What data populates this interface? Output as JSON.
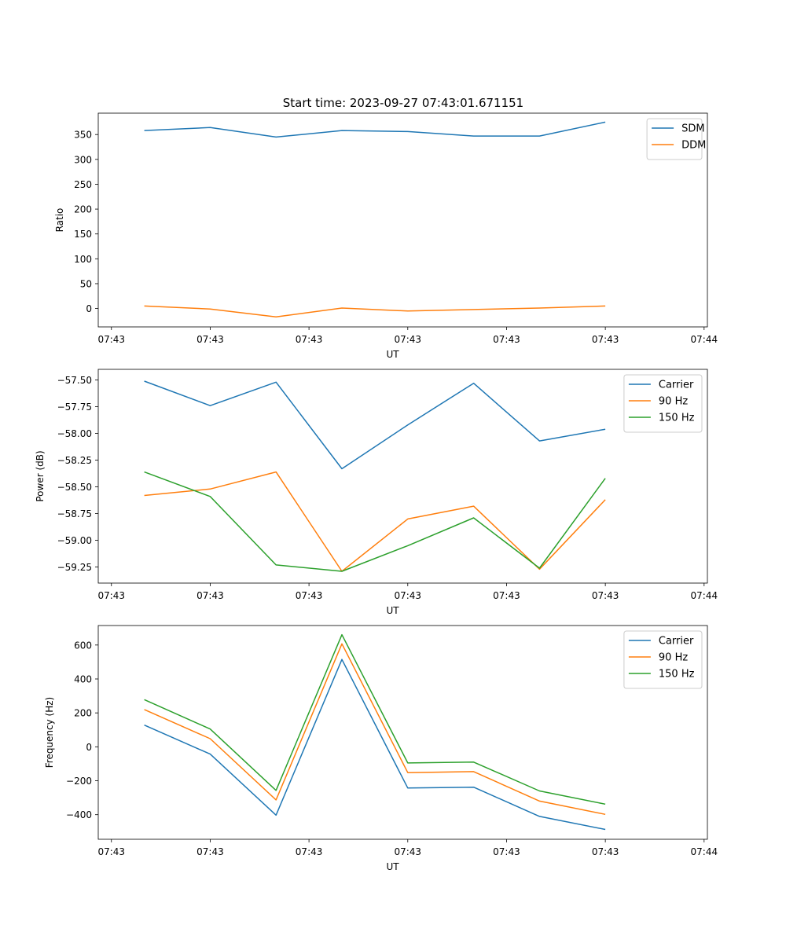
{
  "figure_title": "Start time: 2023-09-27 07:43:01.671151",
  "chart_data": [
    {
      "type": "line",
      "ylabel": "Ratio",
      "xlabel": "UT",
      "x": [
        1,
        2,
        3,
        4,
        5,
        6,
        7,
        8
      ],
      "xlim": [
        0.3,
        9.55
      ],
      "xticks": [
        0.5,
        2,
        3.5,
        5,
        6.5,
        8,
        9.5
      ],
      "xtick_labels": [
        "07:43",
        "07:43",
        "07:43",
        "07:43",
        "07:43",
        "07:43",
        "07:44"
      ],
      "ylim": [
        -37,
        393
      ],
      "yticks": [
        0,
        50,
        100,
        150,
        200,
        250,
        300,
        350
      ],
      "ytick_labels": [
        "0",
        "50",
        "100",
        "150",
        "200",
        "250",
        "300",
        "350"
      ],
      "legend_position": "top-right",
      "series": [
        {
          "name": "SDM",
          "color": "#1f77b4",
          "values": [
            358,
            364,
            345,
            358,
            356,
            347,
            347,
            375
          ]
        },
        {
          "name": "DDM",
          "color": "#ff7f0e",
          "values": [
            5,
            -1,
            -17,
            1,
            -5,
            -2,
            1,
            5
          ]
        }
      ]
    },
    {
      "type": "line",
      "ylabel": "Power (dB)",
      "xlabel": "UT",
      "x": [
        1,
        2,
        3,
        4,
        5,
        6,
        7,
        8
      ],
      "xlim": [
        0.3,
        9.55
      ],
      "xticks": [
        0.5,
        2,
        3.5,
        5,
        6.5,
        8,
        9.5
      ],
      "xtick_labels": [
        "07:43",
        "07:43",
        "07:43",
        "07:43",
        "07:43",
        "07:43",
        "07:44"
      ],
      "ylim": [
        -59.4,
        -57.4
      ],
      "yticks": [
        -57.5,
        -57.75,
        -58.0,
        -58.25,
        -58.5,
        -58.75,
        -59.0,
        -59.25
      ],
      "ytick_labels": [
        "−57.50",
        "−57.75",
        "−58.00",
        "−58.25",
        "−58.50",
        "−58.75",
        "−59.00",
        "−59.25"
      ],
      "legend_position": "top-right",
      "series": [
        {
          "name": "Carrier",
          "color": "#1f77b4",
          "values": [
            -57.51,
            -57.74,
            -57.52,
            -58.33,
            -57.92,
            -57.53,
            -58.07,
            -57.96
          ]
        },
        {
          "name": "90 Hz",
          "color": "#ff7f0e",
          "values": [
            -58.58,
            -58.52,
            -58.36,
            -59.29,
            -58.8,
            -58.68,
            -59.27,
            -58.62
          ]
        },
        {
          "name": "150 Hz",
          "color": "#2ca02c",
          "values": [
            -58.36,
            -58.59,
            -59.23,
            -59.29,
            -59.05,
            -58.79,
            -59.26,
            -58.42
          ]
        }
      ]
    },
    {
      "type": "line",
      "ylabel": "Frequency (Hz)",
      "xlabel": "UT",
      "x": [
        1,
        2,
        3,
        4,
        5,
        6,
        7,
        8
      ],
      "xlim": [
        0.3,
        9.55
      ],
      "xticks": [
        0.5,
        2,
        3.5,
        5,
        6.5,
        8,
        9.5
      ],
      "xtick_labels": [
        "07:43",
        "07:43",
        "07:43",
        "07:43",
        "07:43",
        "07:43",
        "07:44"
      ],
      "ylim": [
        -545,
        715
      ],
      "yticks": [
        -400,
        -200,
        0,
        200,
        400,
        600
      ],
      "ytick_labels": [
        "−400",
        "−200",
        "0",
        "200",
        "400",
        "600"
      ],
      "legend_position": "top-right",
      "series": [
        {
          "name": "Carrier",
          "color": "#1f77b4",
          "values": [
            128,
            -43,
            -403,
            515,
            -243,
            -238,
            -410,
            -487
          ]
        },
        {
          "name": "90 Hz",
          "color": "#ff7f0e",
          "values": [
            220,
            48,
            -313,
            607,
            -152,
            -146,
            -320,
            -398
          ]
        },
        {
          "name": "150 Hz",
          "color": "#2ca02c",
          "values": [
            278,
            105,
            -257,
            661,
            -95,
            -90,
            -260,
            -338
          ]
        }
      ]
    }
  ]
}
